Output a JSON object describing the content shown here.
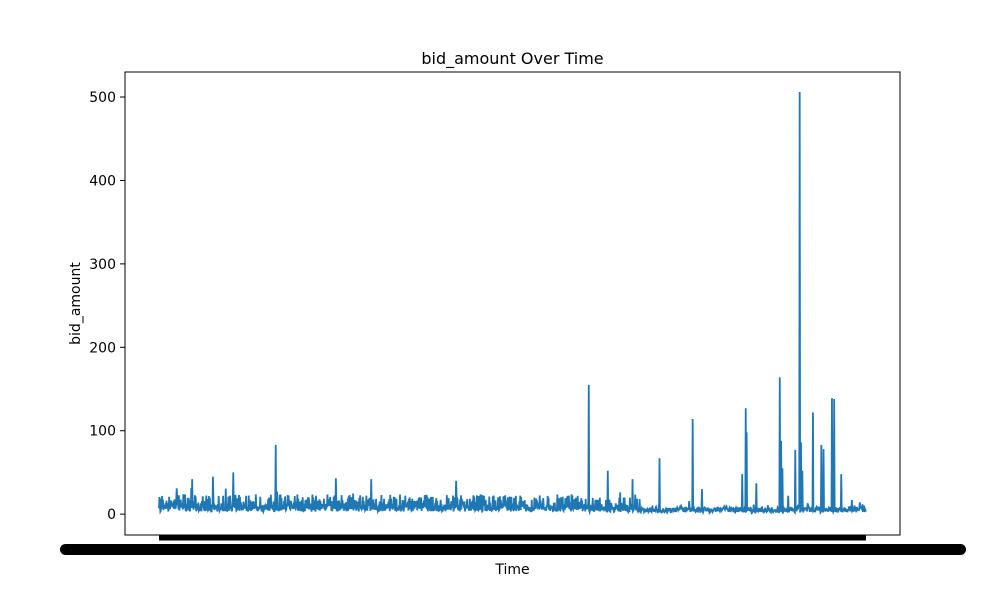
{
  "chart_data": {
    "type": "line",
    "title": "bid_amount Over Time",
    "xlabel": "Time",
    "ylabel": "bid_amount",
    "ylim": [
      -25,
      530
    ],
    "yticks": [
      0,
      100,
      200,
      300,
      400,
      500
    ],
    "xticks_illegible": true,
    "grid": false,
    "colors": {
      "line": "#1f77b4",
      "axes": "#000000",
      "background": "#ffffff"
    },
    "series": [
      {
        "approximate_profile": {
          "n_points": 1600,
          "x_range": [
            0,
            1
          ],
          "segments": [
            {
              "x_start": 0.0,
              "x_end": 0.6,
              "typical_high": 24,
              "typical_low": 3
            },
            {
              "x_start": 0.6,
              "x_end": 0.68,
              "typical_high": 20,
              "typical_low": 2
            },
            {
              "x_start": 0.68,
              "x_end": 1.0,
              "typical_high": 8,
              "typical_low": 2
            }
          ],
          "spikes": [
            {
              "x": 0.025,
              "y": 31
            },
            {
              "x": 0.047,
              "y": 42
            },
            {
              "x": 0.076,
              "y": 45
            },
            {
              "x": 0.105,
              "y": 50
            },
            {
              "x": 0.165,
              "y": 83
            },
            {
              "x": 0.25,
              "y": 43
            },
            {
              "x": 0.3,
              "y": 42
            },
            {
              "x": 0.42,
              "y": 40
            },
            {
              "x": 0.608,
              "y": 155
            },
            {
              "x": 0.635,
              "y": 52
            },
            {
              "x": 0.67,
              "y": 42
            },
            {
              "x": 0.708,
              "y": 67
            },
            {
              "x": 0.755,
              "y": 114
            },
            {
              "x": 0.768,
              "y": 30
            },
            {
              "x": 0.825,
              "y": 48
            },
            {
              "x": 0.83,
              "y": 127
            },
            {
              "x": 0.831,
              "y": 98
            },
            {
              "x": 0.845,
              "y": 37
            },
            {
              "x": 0.878,
              "y": 164
            },
            {
              "x": 0.88,
              "y": 88
            },
            {
              "x": 0.882,
              "y": 55
            },
            {
              "x": 0.89,
              "y": 22
            },
            {
              "x": 0.9,
              "y": 77
            },
            {
              "x": 0.906,
              "y": 506
            },
            {
              "x": 0.908,
              "y": 86
            },
            {
              "x": 0.91,
              "y": 52
            },
            {
              "x": 0.925,
              "y": 122
            },
            {
              "x": 0.937,
              "y": 83
            },
            {
              "x": 0.94,
              "y": 78
            },
            {
              "x": 0.952,
              "y": 139
            },
            {
              "x": 0.955,
              "y": 138
            },
            {
              "x": 0.965,
              "y": 48
            },
            {
              "x": 0.98,
              "y": 17
            },
            {
              "x": 0.995,
              "y": 12
            }
          ]
        }
      }
    ]
  }
}
